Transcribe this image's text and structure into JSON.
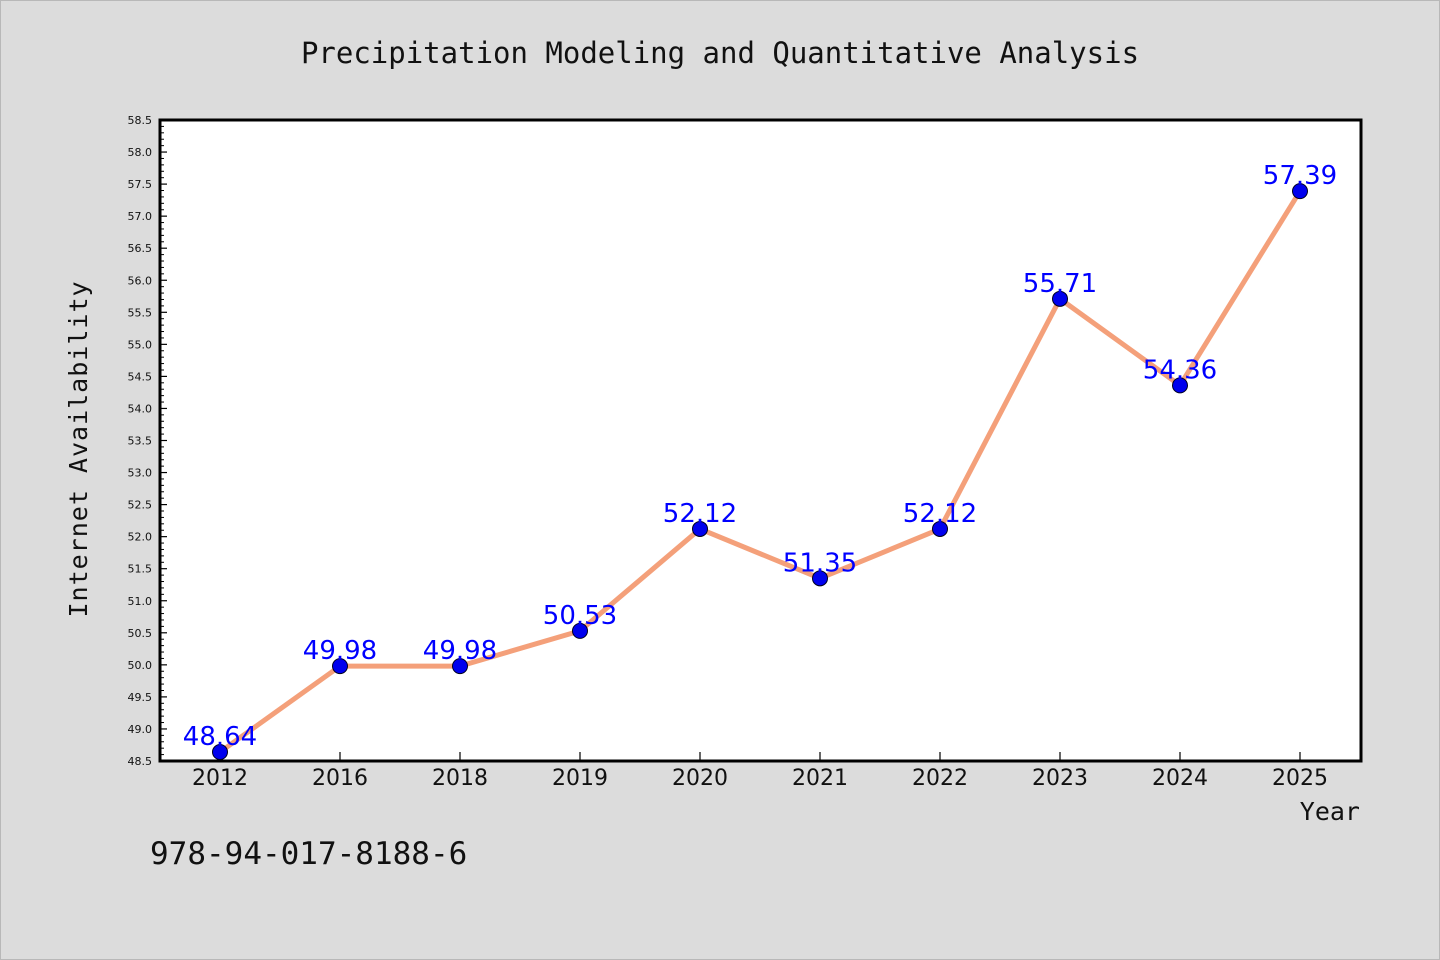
{
  "chart_data": {
    "type": "line",
    "title": "Precipitation Modeling and Quantitative Analysis",
    "xlabel": "Year",
    "ylabel": "Internet Availability",
    "categories": [
      "2012",
      "2016",
      "2018",
      "2019",
      "2020",
      "2021",
      "2022",
      "2023",
      "2024",
      "2025"
    ],
    "values": [
      48.64,
      49.98,
      49.98,
      50.53,
      52.12,
      51.35,
      52.12,
      55.71,
      54.36,
      57.39
    ],
    "data_labels": [
      "48.64",
      "49.98",
      "49.98",
      "50.53",
      "52.12",
      "51.35",
      "52.12",
      "55.71",
      "54.36",
      "57.39"
    ],
    "ylim": [
      48.5,
      58.5
    ],
    "yticks": [
      "48.5",
      "49.0",
      "49.5",
      "50.0",
      "50.5",
      "51.0",
      "51.5",
      "52.0",
      "52.5",
      "53.0",
      "53.5",
      "54.0",
      "54.5",
      "55.0",
      "55.5",
      "56.0",
      "56.5",
      "57.0",
      "57.5",
      "58.0",
      "58.5"
    ],
    "grid": false,
    "line_color": "#f4a07a",
    "marker_color": "#0000ee",
    "label_color": "#0000ff"
  },
  "footer_text": "978-94-017-8188-6"
}
